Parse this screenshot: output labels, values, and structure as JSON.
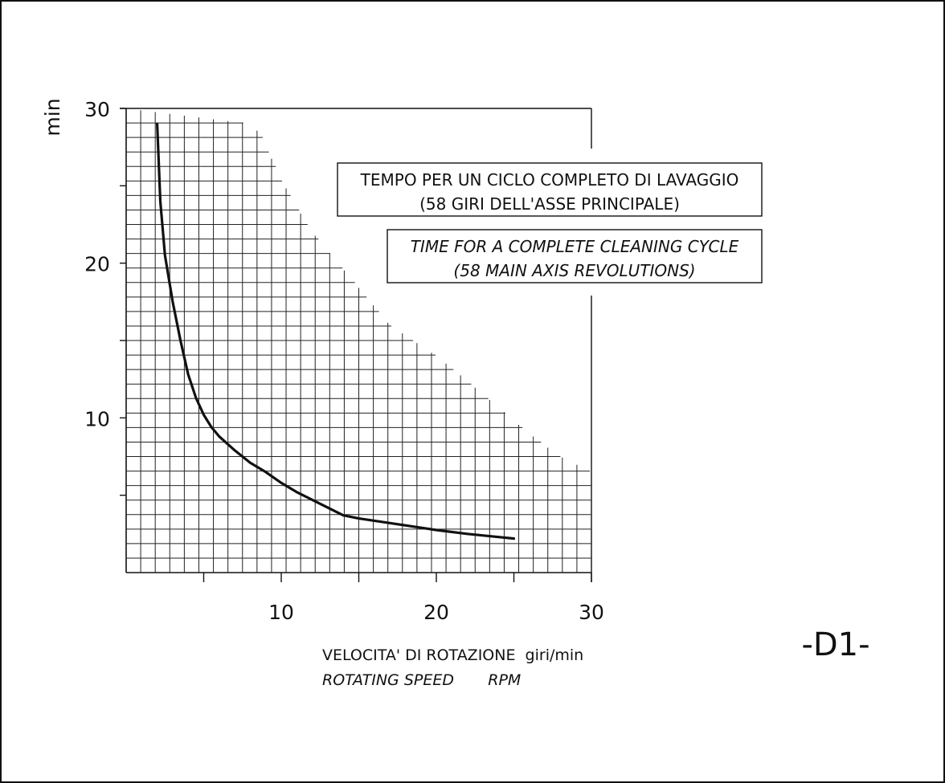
{
  "drawing_tag": "-D1-",
  "chart_data": {
    "type": "line",
    "title": "",
    "xlabel": "VELOCITA' DI ROTAZIONE  giri/min",
    "xlabel_en": "ROTATING SPEED       RPM",
    "ylabel": "min",
    "xlim": [
      0,
      30
    ],
    "ylim": [
      0,
      30
    ],
    "grid": true,
    "x_ticks": [
      10,
      20,
      30
    ],
    "y_ticks": [
      10,
      20,
      30
    ],
    "notes": [
      {
        "lines": [
          "TEMPO PER UN CICLO COMPLETO DI LAVAGGIO",
          "(58 GIRI DELL'ASSE PRINCIPALE)"
        ],
        "italic": false
      },
      {
        "lines": [
          "TIME FOR A COMPLETE CLEANING CYCLE",
          "(58 MAIN AXIS REVOLUTIONS)"
        ],
        "italic": true
      }
    ],
    "series": [
      {
        "x": [
          2.0,
          2.2,
          2.5,
          3.0,
          3.5,
          4.0,
          4.5,
          5.0,
          5.5,
          6.0,
          7.0,
          8.0,
          9.0,
          10.0,
          11.0,
          12.0,
          13.0,
          14.0,
          15.0,
          17.0,
          19.0,
          20.0,
          22.0,
          24.0,
          25.0
        ],
        "y": [
          29.0,
          24.0,
          20.5,
          17.5,
          15.0,
          12.8,
          11.3,
          10.2,
          9.4,
          8.8,
          7.9,
          7.1,
          6.5,
          5.8,
          5.2,
          4.7,
          4.2,
          3.7,
          3.5,
          3.2,
          2.9,
          2.75,
          2.5,
          2.3,
          2.2
        ]
      }
    ]
  }
}
